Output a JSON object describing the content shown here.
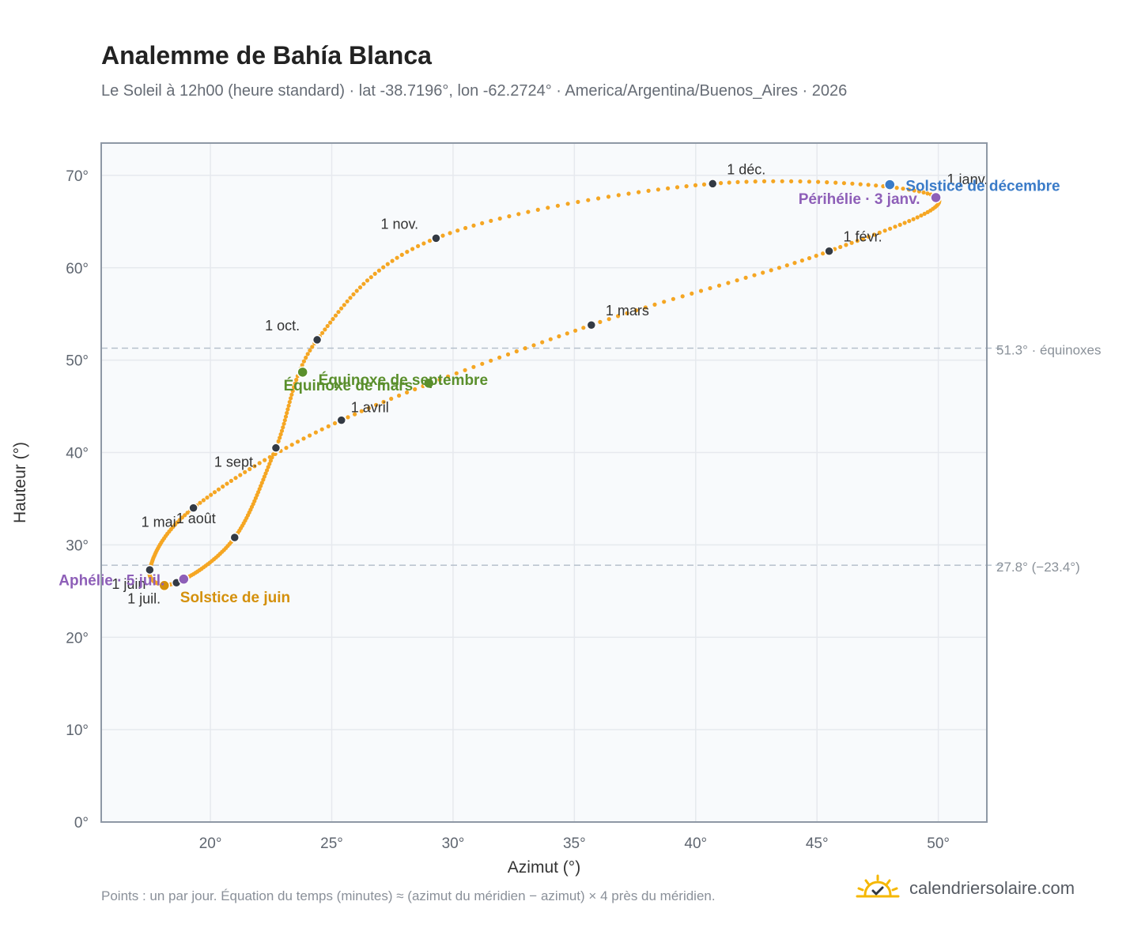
{
  "header": {
    "title": "Analemme de Bahía Blanca",
    "subtitle": "Le Soleil à 12h00 (heure standard) · lat -38.7196°, lon -62.2724° · America/Argentina/Buenos_Aires · 2026"
  },
  "footer": {
    "note": "Points : un par jour. Équation du temps (minutes) ≈ (azimut du méridien − azimut) × 4 près du méridien.",
    "brand": "calendriersolaire.com",
    "brand_icon": "sun-check-icon"
  },
  "colors": {
    "curve": "#f5a623",
    "month_marker": "#333a44",
    "equinox": "#5a8f2c",
    "solstice_june": "#d4900c",
    "solstice_december": "#3a7bc8",
    "apsis": "#8e5fb8",
    "reference_line": "#b5c0cc",
    "grid": "#e6e9ee",
    "plot_bg": "#f8fafc"
  },
  "chart_data": {
    "type": "scatter",
    "xlabel": "Azimut (°)",
    "ylabel": "Hauteur (°)",
    "xlim": [
      15.5,
      52
    ],
    "ylim": [
      0,
      73.5
    ],
    "x_ticks": [
      {
        "value": 20,
        "label": "20°"
      },
      {
        "value": 25,
        "label": "25°"
      },
      {
        "value": 30,
        "label": "30°"
      },
      {
        "value": 35,
        "label": "35°"
      },
      {
        "value": 40,
        "label": "40°"
      },
      {
        "value": 45,
        "label": "45°"
      },
      {
        "value": 50,
        "label": "50°"
      }
    ],
    "y_ticks": [
      {
        "value": 0,
        "label": "0°"
      },
      {
        "value": 10,
        "label": "10°"
      },
      {
        "value": 20,
        "label": "20°"
      },
      {
        "value": 30,
        "label": "30°"
      },
      {
        "value": 40,
        "label": "40°"
      },
      {
        "value": 50,
        "label": "50°"
      },
      {
        "value": 60,
        "label": "60°"
      },
      {
        "value": 70,
        "label": "70°"
      }
    ],
    "grid": true,
    "reference_lines": [
      {
        "y": 51.3,
        "label": "51.3° · équinoxes"
      },
      {
        "y": 27.8,
        "label": "27.8° (−23.4°)"
      }
    ],
    "months": [
      {
        "label": "1 janv.",
        "az": 49.9,
        "alt": 67.7
      },
      {
        "label": "1 févr.",
        "az": 45.5,
        "alt": 61.8
      },
      {
        "label": "1 mars",
        "az": 35.7,
        "alt": 53.8
      },
      {
        "label": "1 avril",
        "az": 25.4,
        "alt": 43.5
      },
      {
        "label": "1 mai",
        "az": 19.3,
        "alt": 34.0
      },
      {
        "label": "1 juin",
        "az": 17.5,
        "alt": 27.3
      },
      {
        "label": "1 juil.",
        "az": 18.6,
        "alt": 25.9
      },
      {
        "label": "1 août",
        "az": 21.0,
        "alt": 30.8
      },
      {
        "label": "1 sept.",
        "az": 22.7,
        "alt": 40.5
      },
      {
        "label": "1 oct.",
        "az": 24.4,
        "alt": 52.2
      },
      {
        "label": "1 nov.",
        "az": 29.3,
        "alt": 63.2
      },
      {
        "label": "1 déc.",
        "az": 40.7,
        "alt": 69.1
      }
    ],
    "events": [
      {
        "label": "Équinoxe de mars",
        "az": 29.0,
        "alt": 47.5,
        "kind": "equinox"
      },
      {
        "label": "Équinoxe de septembre",
        "az": 23.8,
        "alt": 48.7,
        "kind": "equinox"
      },
      {
        "label": "Solstice de juin",
        "az": 18.1,
        "alt": 25.6,
        "kind": "solstice_june"
      },
      {
        "label": "Solstice de décembre",
        "az": 48.0,
        "alt": 69.0,
        "kind": "solstice_december"
      },
      {
        "label": "Aphélie · 5 juil.",
        "az": 18.9,
        "alt": 26.3,
        "kind": "apsis"
      },
      {
        "label": "Périhélie · 3 janv.",
        "az": 49.9,
        "alt": 67.6,
        "kind": "apsis"
      }
    ]
  }
}
